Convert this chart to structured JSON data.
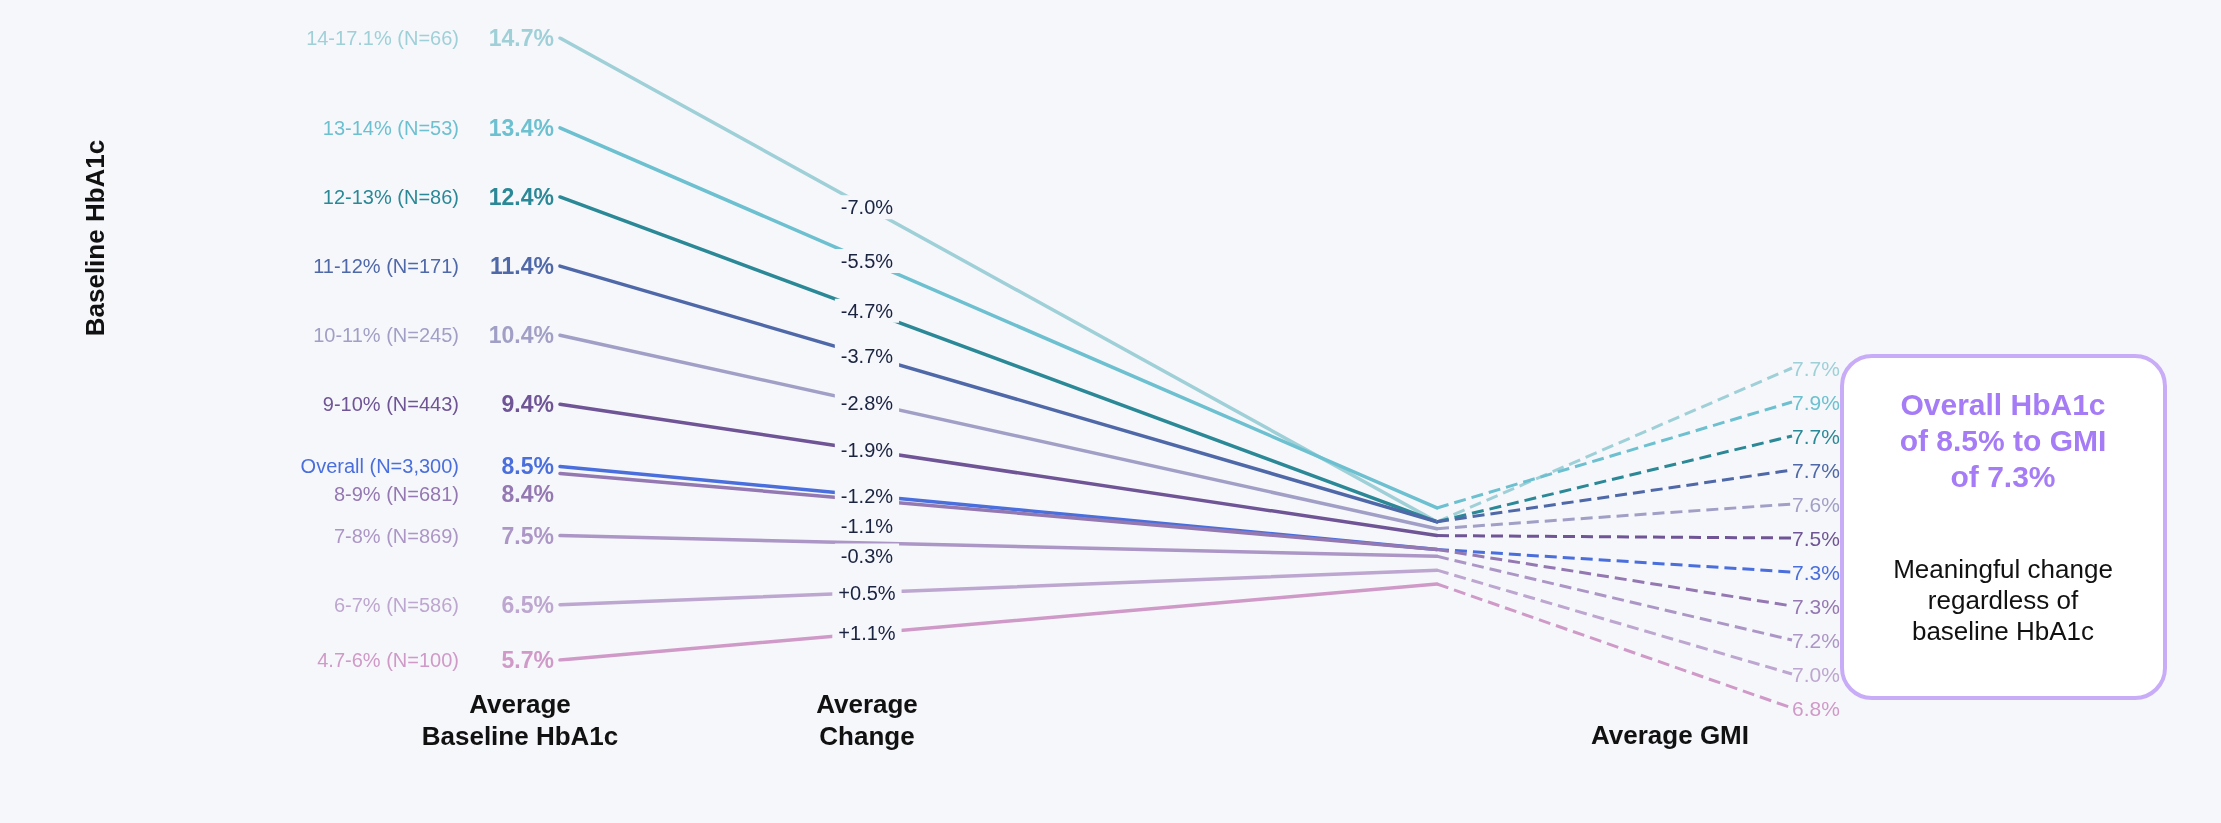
{
  "chart_data": {
    "type": "line",
    "ylabel": "Baseline HbA1c",
    "categories": [
      null,
      null
    ],
    "tick_labels": false,
    "grid": false,
    "legend": false,
    "marker": "none",
    "series": [
      {
        "name": "14-17.1% (N=66)",
        "color": "#9fd0d8",
        "values": [
          14.7,
          7.7
        ],
        "value_labels": [
          "14.7%",
          "7.7%"
        ]
      },
      {
        "name": "13-14% (N=53)",
        "color": "#6cc0d0",
        "values": [
          13.4,
          7.9
        ],
        "value_labels": [
          "13.4%",
          "7.9%"
        ]
      },
      {
        "name": "12-13% (N=86)",
        "color": "#2b8896",
        "values": [
          12.4,
          7.7
        ],
        "value_labels": [
          "12.4%",
          "7.7%"
        ]
      },
      {
        "name": "11-12% (N=171)",
        "color": "#4f68a8",
        "values": [
          11.4,
          7.7
        ],
        "value_labels": [
          "11.4%",
          "7.7%"
        ]
      },
      {
        "name": "10-11% (N=245)",
        "color": "#a19fc6",
        "values": [
          10.4,
          7.6
        ],
        "value_labels": [
          "10.4%",
          "7.6%"
        ]
      },
      {
        "name": "9-10% (N=443)",
        "color": "#6f5595",
        "values": [
          9.4,
          7.5
        ],
        "value_labels": [
          "9.4%",
          "7.5%"
        ]
      },
      {
        "name": "Overall (N=3,300)",
        "color": "#4a6fdc",
        "values": [
          8.5,
          7.3
        ],
        "value_labels": [
          "8.5%",
          "7.3%"
        ]
      },
      {
        "name": "8-9% (N=681)",
        "color": "#9478b2",
        "values": [
          8.4,
          7.3
        ],
        "value_labels": [
          "8.4%",
          "7.3%"
        ]
      },
      {
        "name": "7-8% (N=869)",
        "color": "#ac96c6",
        "values": [
          7.5,
          7.2
        ],
        "value_labels": [
          "7.5%",
          "7.2%"
        ]
      },
      {
        "name": "6-7% (N=586)",
        "color": "#bda6cf",
        "values": [
          6.5,
          7.0
        ],
        "value_labels": [
          "6.5%",
          "7.0%"
        ]
      },
      {
        "name": "4.7-6% (N=100)",
        "color": "#d09ac8",
        "values": [
          5.7,
          6.8
        ],
        "value_labels": [
          "5.7%",
          "6.8%"
        ]
      }
    ],
    "line_style": "solid",
    "annotations": [
      "-7.0%",
      "-5.5%",
      "-4.7%",
      "-3.7%",
      "-2.8%",
      "-1.9%",
      "-1.2%",
      "-1.1%",
      "-0.3%",
      "+0.5%",
      "+1.1%",
      "Average\nBaseline HbA1c",
      "Average\nChange",
      "Average GMI",
      "Overall HbA1c\nof 8.5% to GMI\nof 7.3%",
      "Meaningful change\nregardless of\nbaseline HbA1c"
    ]
  }
}
